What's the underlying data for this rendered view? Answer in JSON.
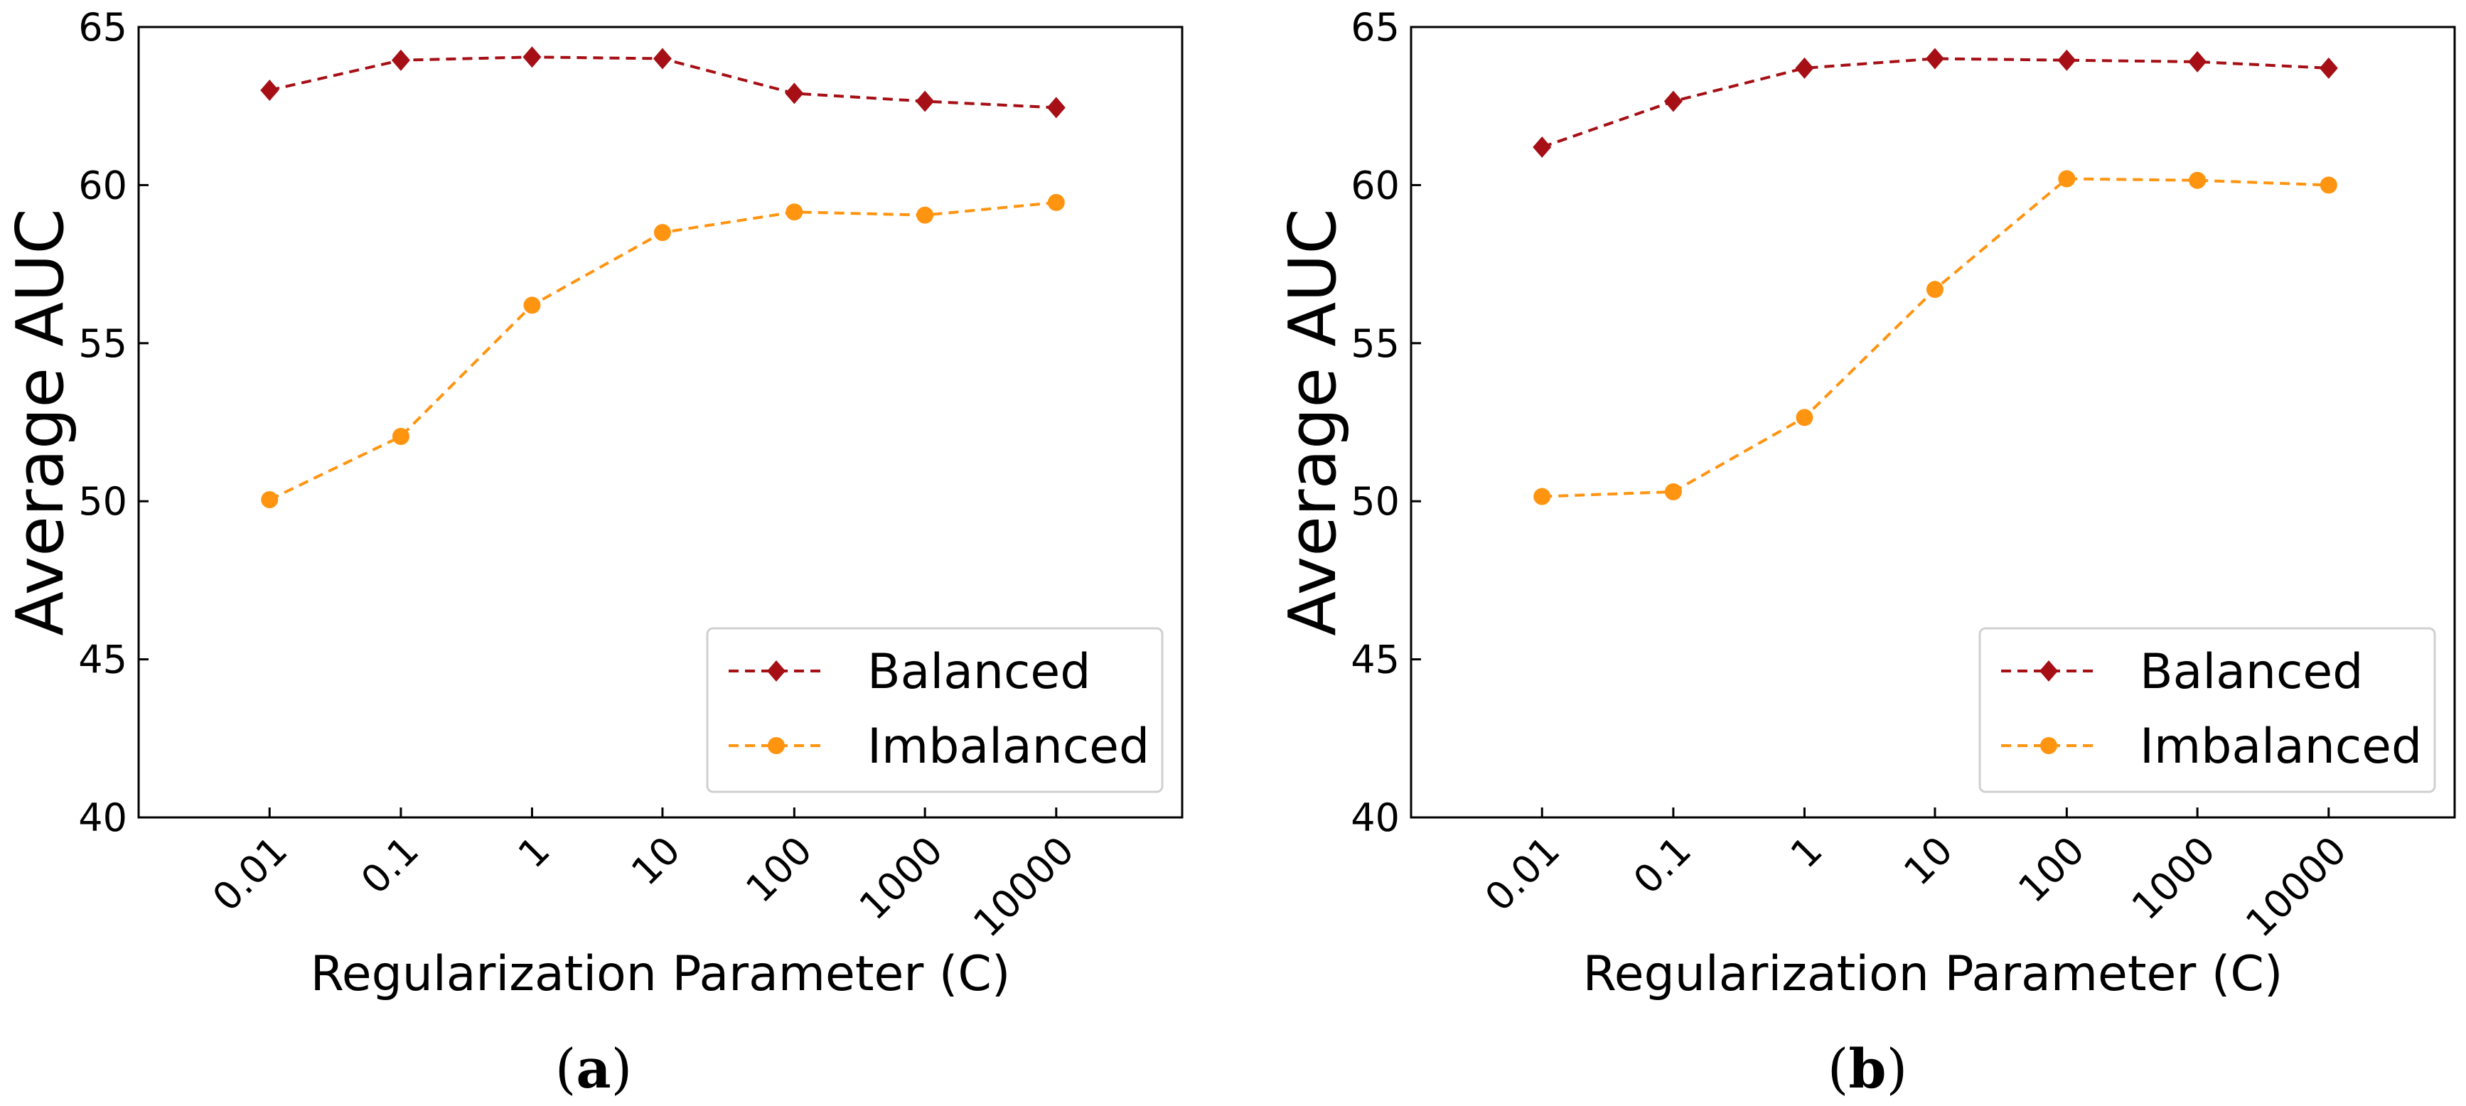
{
  "chart_data": [
    {
      "type": "line",
      "panel_label": "a",
      "title": "",
      "xlabel": "Regularization Parameter (C)",
      "ylabel": "Average AUC",
      "categories": [
        "0.01",
        "0.1",
        "1",
        "10",
        "100",
        "1000",
        "10000"
      ],
      "ylim": [
        40,
        65
      ],
      "yticks": [
        "40",
        "45",
        "50",
        "55",
        "60",
        "65"
      ],
      "grid": false,
      "legend_position": "bottom-right",
      "series": [
        {
          "name": "Balanced",
          "color": "#a50f15",
          "marker": "diamond",
          "values": [
            63.0,
            63.95,
            64.05,
            64.0,
            62.9,
            62.65,
            62.45
          ]
        },
        {
          "name": "Imbalanced",
          "color": "#ff9410",
          "marker": "circle",
          "values": [
            50.05,
            52.05,
            56.2,
            58.5,
            59.15,
            59.05,
            59.45
          ]
        }
      ]
    },
    {
      "type": "line",
      "panel_label": "b",
      "title": "",
      "xlabel": "Regularization Parameter (C)",
      "ylabel": "Average AUC",
      "categories": [
        "0.01",
        "0.1",
        "1",
        "10",
        "100",
        "1000",
        "10000"
      ],
      "ylim": [
        40,
        65
      ],
      "yticks": [
        "40",
        "45",
        "50",
        "55",
        "60",
        "65"
      ],
      "grid": false,
      "legend_position": "bottom-right",
      "series": [
        {
          "name": "Balanced",
          "color": "#a50f15",
          "marker": "diamond",
          "values": [
            61.2,
            62.65,
            63.7,
            64.0,
            63.95,
            63.9,
            63.7
          ]
        },
        {
          "name": "Imbalanced",
          "color": "#ff9410",
          "marker": "circle",
          "values": [
            50.15,
            50.3,
            52.65,
            56.7,
            60.2,
            60.15,
            60.0
          ]
        }
      ]
    }
  ]
}
